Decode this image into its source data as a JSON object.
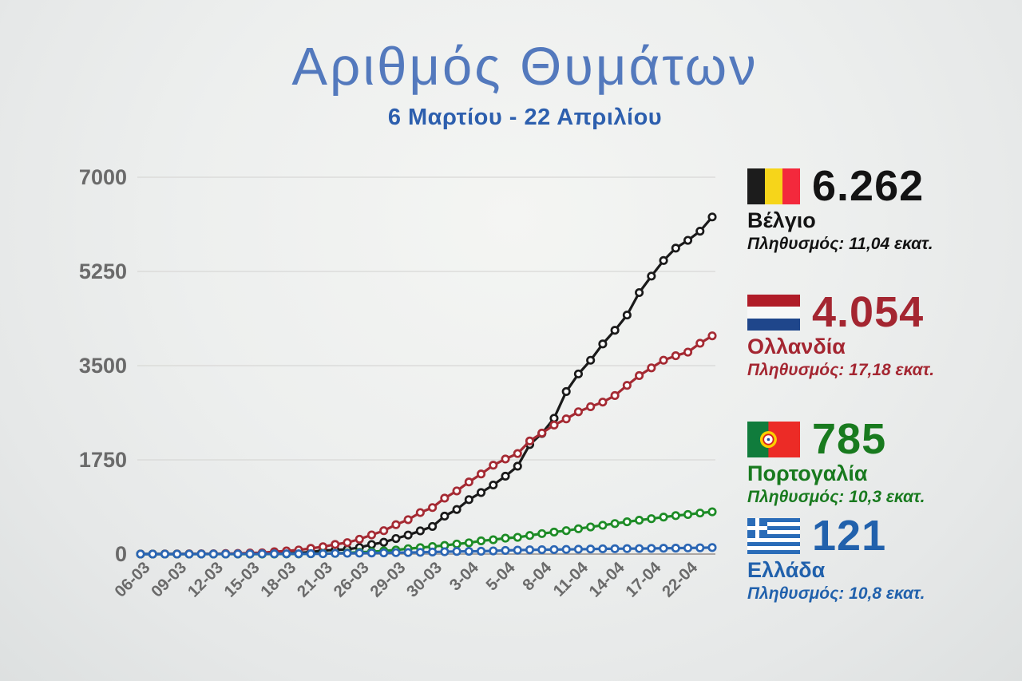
{
  "header": {
    "title": "Αριθμός Θυμάτων",
    "subtitle": "6 Μαρτίου - 22 Απριλίου"
  },
  "chart_data": {
    "type": "line",
    "title": "Αριθμός Θυμάτων",
    "subtitle": "6 Μαρτίου - 22 Απριλίου",
    "xlabel": "",
    "ylabel": "",
    "ylim": [
      0,
      7000
    ],
    "yticks": [
      7000,
      5250,
      3500,
      1750,
      0
    ],
    "grid": true,
    "legend_position": "right",
    "x_tick_labels": [
      "06-03",
      "09-03",
      "12-03",
      "15-03",
      "18-03",
      "21-03",
      "26-03",
      "29-03",
      "30-03",
      "3-04",
      "5-04",
      "8-04",
      "11-04",
      "14-04",
      "17-04",
      "22-04"
    ],
    "x_tick_every": 3,
    "marker": "open-circle",
    "series": [
      {
        "name": "Βέλγιο",
        "color": "#1a1a1a",
        "values": [
          0,
          0,
          0,
          0,
          1,
          3,
          3,
          3,
          4,
          4,
          5,
          10,
          14,
          21,
          37,
          67,
          75,
          88,
          122,
          178,
          220,
          289,
          353,
          431,
          513,
          705,
          828,
          1011,
          1143,
          1283,
          1447,
          1632,
          2035,
          2240,
          2523,
          3019,
          3346,
          3600,
          3903,
          4157,
          4440,
          4857,
          5163,
          5453,
          5683,
          5828,
          5998,
          6262
        ]
      },
      {
        "name": "Ολλανδία",
        "color": "#a52a33",
        "values": [
          1,
          1,
          3,
          3,
          4,
          5,
          5,
          10,
          12,
          20,
          24,
          43,
          58,
          76,
          106,
          136,
          179,
          213,
          276,
          356,
          434,
          546,
          639,
          771,
          864,
          1039,
          1173,
          1339,
          1487,
          1651,
          1766,
          1867,
          2101,
          2248,
          2396,
          2511,
          2643,
          2737,
          2823,
          2945,
          3134,
          3315,
          3459,
          3601,
          3684,
          3751,
          3916,
          4054
        ]
      },
      {
        "name": "Πορτογαλία",
        "color": "#1d8c26",
        "values": [
          0,
          0,
          0,
          0,
          0,
          0,
          0,
          0,
          0,
          0,
          0,
          1,
          2,
          3,
          6,
          12,
          14,
          23,
          33,
          43,
          60,
          76,
          100,
          119,
          140,
          160,
          187,
          209,
          246,
          266,
          295,
          311,
          345,
          380,
          409,
          435,
          470,
          504,
          535,
          567,
          599,
          629,
          657,
          687,
          714,
          735,
          762,
          785
        ]
      },
      {
        "name": "Ελλάδα",
        "color": "#2b66b4",
        "values": [
          0,
          0,
          0,
          0,
          0,
          1,
          1,
          1,
          3,
          3,
          4,
          4,
          5,
          5,
          6,
          6,
          13,
          15,
          17,
          20,
          22,
          26,
          28,
          32,
          38,
          43,
          49,
          50,
          53,
          59,
          68,
          73,
          79,
          81,
          83,
          86,
          90,
          93,
          98,
          99,
          101,
          102,
          105,
          108,
          110,
          113,
          116,
          121
        ]
      }
    ]
  },
  "axis": {
    "tick_color": "#6a6a6a",
    "grid_color": "#d8d8d6",
    "zero_line_color": "#a39d98"
  },
  "legend": {
    "entries": [
      {
        "flag": "belgium-flag",
        "value": "6.262",
        "country": "Βέλγιο",
        "population": "Πληθυσμός: 11,04 εκατ.",
        "color": "#131313"
      },
      {
        "flag": "netherlands-flag",
        "value": "4.054",
        "country": "Ολλανδία",
        "population": "Πληθυσμός: 17,18 εκατ.",
        "color": "#a42631"
      },
      {
        "flag": "portugal-flag",
        "value": "785",
        "country": "Πορτογαλία",
        "population": "Πληθυσμός: 10,3 εκατ.",
        "color": "#187a1e"
      },
      {
        "flag": "greece-flag",
        "value": "121",
        "country": "Ελλάδα",
        "population": "Πληθυσμός: 10,8 εκατ.",
        "color": "#2161ac"
      }
    ]
  },
  "colors": {
    "title": "#5379bd",
    "subtitle": "#2d5fae",
    "background_center": "#f4f5f3",
    "background_edge": "#dde0e0"
  }
}
